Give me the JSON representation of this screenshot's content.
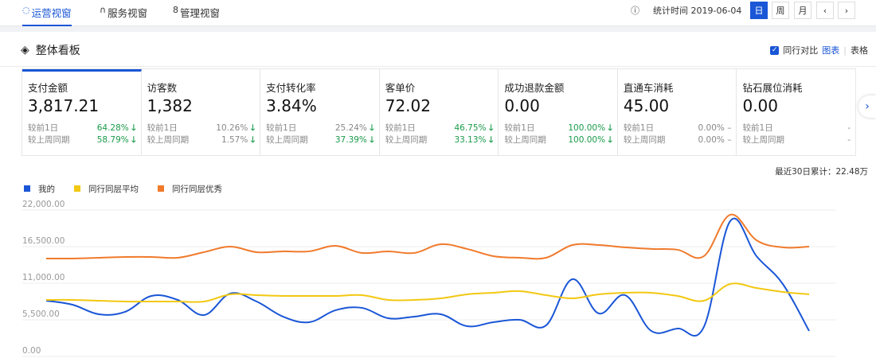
{
  "tabs": [
    {
      "label": "运营视窗",
      "icon": "refresh-icon"
    },
    {
      "label": "服务视窗",
      "icon": "headset-icon"
    },
    {
      "label": "管理视窗",
      "icon": "person-icon"
    }
  ],
  "header": {
    "info_icon": "ⓘ",
    "stat_label": "统计时间 2019-06-04",
    "periods": [
      "日",
      "周",
      "月"
    ],
    "prev": "‹",
    "next": "›"
  },
  "panel": {
    "title": "整体看板",
    "compare_label": "同行对比",
    "view_chart": "图表",
    "separator": "|",
    "view_table": "表格"
  },
  "cards": [
    {
      "title": "支付金额",
      "value": "3,817.21",
      "rows": [
        {
          "label": "较前1日",
          "val": "64.28%",
          "trend": "down"
        },
        {
          "label": "较上周同期",
          "val": "58.79%",
          "trend": "down"
        }
      ]
    },
    {
      "title": "访客数",
      "value": "1,382",
      "rows": [
        {
          "label": "较前1日",
          "val": "10.26%",
          "trend": "down",
          "gray": true
        },
        {
          "label": "较上周同期",
          "val": "1.57%",
          "trend": "down",
          "gray": true
        }
      ]
    },
    {
      "title": "支付转化率",
      "value": "3.84%",
      "rows": [
        {
          "label": "较前1日",
          "val": "25.24%",
          "trend": "down",
          "gray": true
        },
        {
          "label": "较上周同期",
          "val": "37.39%",
          "trend": "down"
        }
      ]
    },
    {
      "title": "客单价",
      "value": "72.02",
      "rows": [
        {
          "label": "较前1日",
          "val": "46.75%",
          "trend": "down"
        },
        {
          "label": "较上周同期",
          "val": "33.13%",
          "trend": "down"
        }
      ]
    },
    {
      "title": "成功退款金额",
      "value": "0.00",
      "rows": [
        {
          "label": "较前1日",
          "val": "100.00%",
          "trend": "down"
        },
        {
          "label": "较上周同期",
          "val": "100.00%",
          "trend": "down"
        }
      ]
    },
    {
      "title": "直通车消耗",
      "value": "45.00",
      "rows": [
        {
          "label": "较前1日",
          "val": "0.00%",
          "trend": "flat",
          "gray": true
        },
        {
          "label": "较上周同期",
          "val": "0.00%",
          "trend": "flat",
          "gray": true
        }
      ]
    },
    {
      "title": "钻石展位消耗",
      "value": "0.00",
      "rows": [
        {
          "label": "较前1日",
          "val": "-",
          "trend": "none",
          "gray": true
        },
        {
          "label": "较上周同期",
          "val": "-",
          "trend": "none",
          "gray": true
        }
      ]
    }
  ],
  "total_label": "最近30日累计：22.48万",
  "chart_data": {
    "type": "line",
    "ylim": [
      0,
      22000
    ],
    "yticks": [
      "0.00",
      "5,500.00",
      "11,000.00",
      "16,500.00",
      "22,000.00"
    ],
    "grid": true,
    "legend": "top-left",
    "series": [
      {
        "name": "我的",
        "color": "#1a56d6",
        "values": [
          8370,
          7770,
          6340,
          6700,
          9090,
          8490,
          6220,
          9450,
          8250,
          5980,
          5140,
          6940,
          7300,
          5740,
          5980,
          6340,
          4540,
          5140,
          5500,
          4660,
          11600,
          6460,
          9210,
          3830,
          4190,
          4430,
          20330,
          15070,
          10880,
          3830
        ]
      },
      {
        "name": "同行同层平均",
        "color": "#f2c812",
        "values": [
          8490,
          8490,
          8370,
          8250,
          8250,
          8250,
          8250,
          9330,
          9210,
          9090,
          9090,
          9090,
          9210,
          8490,
          8490,
          8730,
          9330,
          9570,
          9810,
          9210,
          8730,
          9330,
          9570,
          9570,
          9090,
          8370,
          10880,
          10280,
          9690,
          9330
        ]
      },
      {
        "name": "同行同层优秀",
        "color": "#f07a2c",
        "values": [
          14710,
          14710,
          14830,
          14950,
          14950,
          14830,
          15670,
          16500,
          15670,
          15790,
          15790,
          16620,
          15550,
          15790,
          15550,
          16860,
          16150,
          15070,
          14830,
          14830,
          16740,
          16740,
          16390,
          16150,
          16030,
          15070,
          21290,
          17460,
          16390,
          16500
        ]
      }
    ]
  }
}
